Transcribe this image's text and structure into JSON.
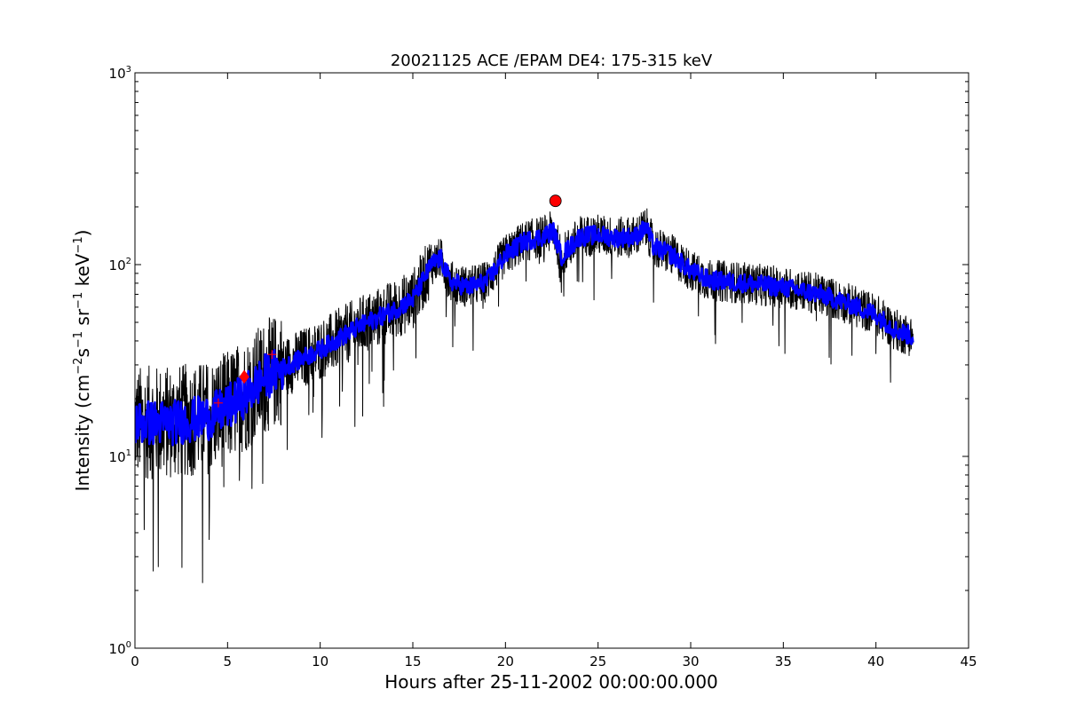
{
  "chart_data": {
    "type": "line",
    "title": "20021125 ACE /EPAM DE4: 175-315 keV",
    "xlabel": "Hours after 25-11-2002 00:00:00.000",
    "ylabel_parts": {
      "pre": "Intensity (cm",
      "exp1": "−2",
      "mid1": "s",
      "exp2": "−1",
      "mid2": " sr",
      "exp3": "−1",
      "mid3": " keV",
      "exp4": "−1",
      "post": ")"
    },
    "xlim": [
      0,
      45
    ],
    "ylim": [
      1,
      1000
    ],
    "yscale": "log",
    "grid": false,
    "x_ticks": [
      0,
      5,
      10,
      15,
      20,
      25,
      30,
      35,
      40,
      45
    ],
    "x_tick_labels": [
      "0",
      "5",
      "10",
      "15",
      "20",
      "25",
      "30",
      "35",
      "40",
      "45"
    ],
    "y_ticks": [
      1,
      10,
      100,
      1000
    ],
    "y_tick_labels": [
      {
        "base": "10",
        "exp": "0"
      },
      {
        "base": "10",
        "exp": "1"
      },
      {
        "base": "10",
        "exp": "2"
      },
      {
        "base": "10",
        "exp": "3"
      }
    ],
    "series": [
      {
        "role": "raw",
        "color": "#000000",
        "x_range": [
          0,
          42
        ],
        "envelope": [
          {
            "x": 0,
            "y": 15
          },
          {
            "x": 2,
            "y": 15
          },
          {
            "x": 4,
            "y": 16
          },
          {
            "x": 5,
            "y": 18
          },
          {
            "x": 6,
            "y": 21
          },
          {
            "x": 7,
            "y": 26
          },
          {
            "x": 8,
            "y": 29
          },
          {
            "x": 10,
            "y": 36
          },
          {
            "x": 12,
            "y": 47
          },
          {
            "x": 14,
            "y": 58
          },
          {
            "x": 15,
            "y": 66
          },
          {
            "x": 16,
            "y": 100
          },
          {
            "x": 16.5,
            "y": 108
          },
          {
            "x": 17,
            "y": 82
          },
          {
            "x": 18,
            "y": 76
          },
          {
            "x": 19,
            "y": 82
          },
          {
            "x": 20,
            "y": 112
          },
          {
            "x": 21,
            "y": 132
          },
          {
            "x": 22,
            "y": 140
          },
          {
            "x": 22.6,
            "y": 150
          },
          {
            "x": 23,
            "y": 110
          },
          {
            "x": 24,
            "y": 140
          },
          {
            "x": 25,
            "y": 143
          },
          {
            "x": 26,
            "y": 138
          },
          {
            "x": 27,
            "y": 140
          },
          {
            "x": 27.6,
            "y": 156
          },
          {
            "x": 28,
            "y": 124
          },
          {
            "x": 29,
            "y": 112
          },
          {
            "x": 30,
            "y": 93
          },
          {
            "x": 31,
            "y": 83
          },
          {
            "x": 33,
            "y": 80
          },
          {
            "x": 35,
            "y": 76
          },
          {
            "x": 37,
            "y": 70
          },
          {
            "x": 38,
            "y": 65
          },
          {
            "x": 39,
            "y": 60
          },
          {
            "x": 40,
            "y": 55
          },
          {
            "x": 41,
            "y": 46
          },
          {
            "x": 42,
            "y": 42
          }
        ]
      },
      {
        "role": "smoothed",
        "color": "#0000ff",
        "x_range": [
          0,
          42
        ]
      }
    ],
    "markers": [
      {
        "shape": "circle",
        "color": "#ff0000",
        "x": 22.7,
        "y": 215
      },
      {
        "shape": "diamond",
        "color": "#ff0000",
        "x": 5.9,
        "y": 26
      },
      {
        "shape": "plus",
        "color": "#ff0000",
        "x": 4.5,
        "y": 19
      },
      {
        "shape": "plus",
        "color": "#ff0000",
        "x": 7.4,
        "y": 34
      }
    ]
  }
}
